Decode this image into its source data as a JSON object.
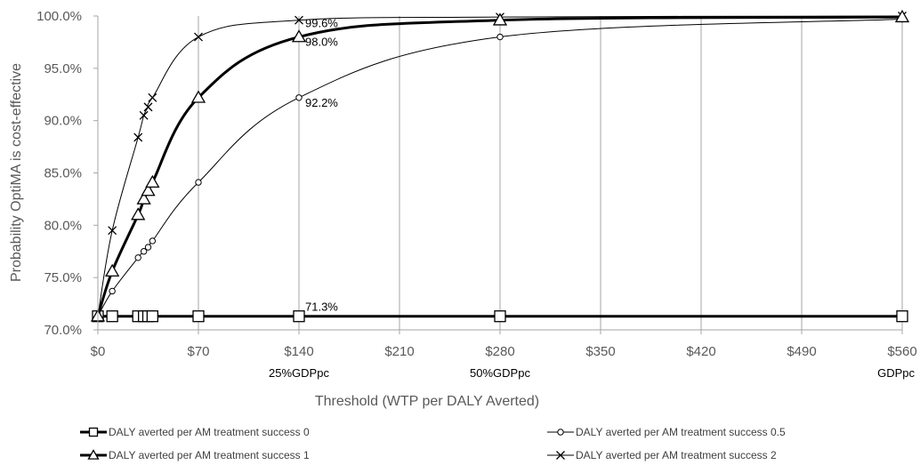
{
  "chart_data": {
    "type": "line",
    "title": "",
    "xlabel": "Threshold (WTP per DALY Averted)",
    "ylabel": "Probability OptiMA is cost-effective",
    "xlim": [
      0,
      560
    ],
    "ylim": [
      0.7,
      1.0
    ],
    "x_ticks": [
      0,
      70,
      140,
      210,
      280,
      350,
      420,
      490,
      560
    ],
    "x_tick_labels": [
      "$0",
      "$70",
      "$140",
      "$210",
      "$280",
      "$350",
      "$420",
      "$490",
      "$560"
    ],
    "y_ticks": [
      0.7,
      0.75,
      0.8,
      0.85,
      0.9,
      0.95,
      1.0
    ],
    "y_tick_labels": [
      "70.0%",
      "75.0%",
      "80.0%",
      "85.0%",
      "90.0%",
      "95.0%",
      "100.0%"
    ],
    "grid": "vertical",
    "reference_labels": [
      {
        "x": 140,
        "text": "25%GDPpc"
      },
      {
        "x": 280,
        "text": "50%GDPpc"
      },
      {
        "x": 560,
        "text": "GDPpc"
      }
    ],
    "annotations": [
      {
        "x": 140,
        "y": 0.996,
        "text": "99.6%"
      },
      {
        "x": 140,
        "y": 0.98,
        "text": "98.0%"
      },
      {
        "x": 140,
        "y": 0.922,
        "text": "92.2%"
      },
      {
        "x": 140,
        "y": 0.713,
        "text": "71.3%"
      }
    ],
    "legend_position": "bottom",
    "series": [
      {
        "name": "DALY averted per AM treatment success 0",
        "marker": "square",
        "stroke_width": 3,
        "x": [
          0,
          10,
          28,
          32,
          35,
          38,
          70,
          140,
          280,
          560
        ],
        "y": [
          0.713,
          0.713,
          0.713,
          0.713,
          0.713,
          0.713,
          0.713,
          0.713,
          0.713,
          0.713
        ]
      },
      {
        "name": "DALY averted per AM treatment success 0.5",
        "marker": "circle",
        "stroke_width": 1,
        "x": [
          0,
          10,
          28,
          32,
          35,
          38,
          70,
          140,
          280,
          560
        ],
        "y": [
          0.713,
          0.737,
          0.769,
          0.775,
          0.779,
          0.785,
          0.841,
          0.922,
          0.98,
          0.997
        ]
      },
      {
        "name": "DALY averted per AM treatment success 1",
        "marker": "triangle",
        "stroke_width": 3,
        "x": [
          0,
          10,
          28,
          32,
          35,
          38,
          70,
          140,
          280,
          560
        ],
        "y": [
          0.713,
          0.756,
          0.81,
          0.825,
          0.833,
          0.841,
          0.922,
          0.98,
          0.996,
          0.999
        ]
      },
      {
        "name": "DALY averted per AM treatment success 2",
        "marker": "x",
        "stroke_width": 1,
        "x": [
          0,
          10,
          28,
          32,
          35,
          38,
          70,
          140,
          280,
          560
        ],
        "y": [
          0.713,
          0.795,
          0.884,
          0.905,
          0.913,
          0.922,
          0.98,
          0.996,
          0.999,
          1.0
        ]
      }
    ]
  }
}
